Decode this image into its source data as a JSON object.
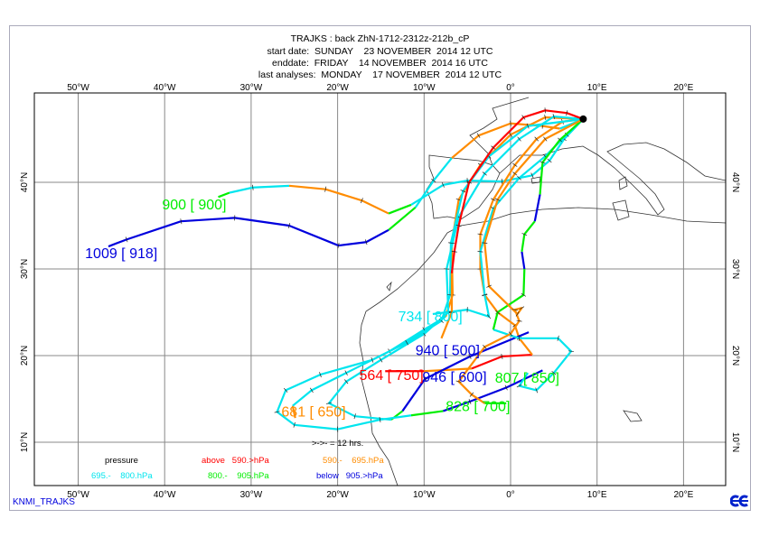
{
  "header": {
    "title": "TRAJKS : back ZhN-1712-2312z-212b_cP",
    "start_date": "start date:  SUNDAY    23 NOVEMBER  2014 12 UTC",
    "end_date": "enddate:  FRIDAY    14 NOVEMBER  2014 16 UTC",
    "last_analyses": "last analyses:  MONDAY    17 NOVEMBER  2014 12 UTC"
  },
  "map": {
    "lon_labels": [
      "50°W",
      "40°W",
      "30°W",
      "20°W",
      "10°W",
      "0°",
      "10°E",
      "20°E"
    ],
    "lat_labels": [
      "10°N",
      "20°N",
      "30°N",
      "40°N"
    ],
    "start_point": [
      8.4,
      47.3
    ]
  },
  "colors": {
    "above_590": "#ff0000",
    "590_695": "#ff8c00",
    "695_800": "#00e5ee",
    "800_905": "#00ee00",
    "below_905": "#0000dd"
  },
  "trajectories": [
    {
      "label": "1009 [ 918]",
      "label_color": "#0000dd",
      "label_at": [
        -49.2,
        31.9
      ],
      "segments": [
        [
          "#0000dd",
          [
            [
              -46.5,
              32.6
            ],
            [
              -44.4,
              33.4
            ],
            [
              -38.1,
              35.5
            ],
            [
              -31.9,
              35.9
            ],
            [
              -25.6,
              35
            ],
            [
              -19.9,
              32.7
            ],
            [
              -16.7,
              33.1
            ],
            [
              -14.1,
              34.5
            ]
          ]
        ],
        [
          "#00ee00",
          [
            [
              -14.1,
              34.5
            ],
            [
              -11,
              37.1
            ]
          ]
        ],
        [
          "#00e5ee",
          [
            [
              -11,
              37.1
            ],
            [
              -8.9,
              40.2
            ],
            [
              -6.8,
              42.8
            ]
          ]
        ],
        [
          "#ff8c00",
          [
            [
              -6.8,
              42.8
            ],
            [
              -3.7,
              45.4
            ],
            [
              0,
              46.8
            ],
            [
              3.7,
              46.5
            ],
            [
              5.7,
              46.2
            ]
          ]
        ],
        [
          "#00e5ee",
          [
            [
              5.7,
              46.2
            ],
            [
              8.4,
              47.3
            ]
          ]
        ]
      ]
    },
    {
      "label": "900 [ 900]",
      "label_color": "#00ee00",
      "label_at": [
        -40.3,
        37.5
      ],
      "segments": [
        [
          "#00ee00",
          [
            [
              -33.8,
              38.3
            ],
            [
              -32.5,
              38.8
            ]
          ]
        ],
        [
          "#00e5ee",
          [
            [
              -32.5,
              38.8
            ],
            [
              -29.8,
              39.4
            ],
            [
              -25.6,
              39.6
            ]
          ]
        ],
        [
          "#ff8c00",
          [
            [
              -25.6,
              39.6
            ],
            [
              -21.4,
              39.2
            ],
            [
              -17.2,
              37.9
            ],
            [
              -14.1,
              36.4
            ]
          ]
        ],
        [
          "#00ee00",
          [
            [
              -14.1,
              36.4
            ],
            [
              -11.5,
              37.4
            ]
          ]
        ],
        [
          "#00e5ee",
          [
            [
              -11.5,
              37.4
            ],
            [
              -7.8,
              39.7
            ],
            [
              -5,
              40.2
            ],
            [
              -1,
              40.1
            ],
            [
              2.5,
              40.8
            ],
            [
              4.5,
              42.5
            ],
            [
              6.2,
              45
            ],
            [
              8.4,
              47.3
            ]
          ]
        ]
      ]
    },
    {
      "label": "564 [ 750]",
      "label_color": "#ff0000",
      "label_at": [
        -17.5,
        17.8
      ],
      "segments": [
        [
          "#ff0000",
          [
            [
              -14.5,
              18.2
            ],
            [
              -10,
              18.2
            ]
          ]
        ],
        [
          "#ff8c00",
          [
            [
              -10,
              18.2
            ],
            [
              -4.5,
              18.5
            ]
          ]
        ],
        [
          "#ff0000",
          [
            [
              -4.5,
              18.5
            ],
            [
              -1,
              19.9
            ],
            [
              2.5,
              20.1
            ]
          ]
        ],
        [
          "#ff8c00",
          [
            [
              2.5,
              20.1
            ],
            [
              1,
              22
            ],
            [
              0.5,
              23.5
            ],
            [
              -1.5,
              25
            ],
            [
              -3,
              27
            ],
            [
              -3.5,
              30
            ],
            [
              -3.5,
              34
            ],
            [
              -2,
              38
            ],
            [
              0.5,
              42
            ],
            [
              3,
              45
            ],
            [
              6,
              47
            ],
            [
              8.4,
              47.3
            ]
          ]
        ]
      ]
    },
    {
      "label": "681 [ 650]",
      "label_color": "#ff8c00",
      "label_at": [
        -26.5,
        13.6
      ],
      "segments": [
        [
          "#ff8c00",
          [
            [
              -24.9,
              12.8
            ],
            [
              -25.2,
              14.2
            ]
          ]
        ],
        [
          "#00e5ee",
          [
            [
              -25.2,
              14.2
            ],
            [
              -23,
              16
            ],
            [
              -19,
              18
            ],
            [
              -14,
              20.5
            ],
            [
              -10,
              23
            ],
            [
              -7.5,
              24.5
            ]
          ]
        ],
        [
          "#ff8c00",
          [
            [
              -7.5,
              24.5
            ],
            [
              -6.7,
              27
            ],
            [
              -6.8,
              33
            ],
            [
              -6,
              38
            ],
            [
              -3.5,
              42
            ],
            [
              0,
              45.5
            ],
            [
              4,
              47.5
            ],
            [
              8.4,
              47.3
            ]
          ]
        ]
      ]
    },
    {
      "label": "734 [ 800]",
      "label_color": "#00e5ee",
      "label_at": [
        -13,
        24.6
      ],
      "segments": [
        [
          "#00e5ee",
          [
            [
              -9,
              24.8
            ],
            [
              -5,
              25.3
            ],
            [
              -2.5,
              24.5
            ],
            [
              -3,
              27
            ],
            [
              -3.5,
              32
            ],
            [
              -2,
              37
            ],
            [
              1,
              40.5
            ],
            [
              4,
              43
            ],
            [
              6.5,
              45.5
            ],
            [
              8.4,
              47.3
            ]
          ]
        ]
      ]
    },
    {
      "label": "940 [ 500]",
      "label_color": "#0000dd",
      "label_at": [
        -11,
        20.7
      ],
      "segments": [
        [
          "#0000dd",
          [
            [
              2.1,
              22.7
            ],
            [
              -4.7,
              19.9
            ],
            [
              -9.9,
              17.3
            ],
            [
              -12.5,
              13.6
            ]
          ]
        ],
        [
          "#00ee00",
          [
            [
              -12.5,
              13.6
            ],
            [
              -13.8,
              12.6
            ]
          ]
        ],
        [
          "#00e5ee",
          [
            [
              -13.8,
              12.6
            ],
            [
              -18,
              13
            ],
            [
              -21,
              14.5
            ],
            [
              -19,
              17
            ],
            [
              -15,
              19.5
            ],
            [
              -10,
              22.5
            ],
            [
              -7.2,
              25
            ],
            [
              -7.4,
              30
            ],
            [
              -6,
              36
            ],
            [
              -3,
              41
            ],
            [
              1,
              45
            ],
            [
              5,
              47.6
            ],
            [
              8.4,
              47.3
            ]
          ]
        ]
      ]
    },
    {
      "label": "946 [ 600]",
      "label_color": "#0000dd",
      "label_at": [
        -10.2,
        17.6
      ],
      "segments": [
        [
          "#0000dd",
          [
            [
              3.7,
              18.3
            ],
            [
              -0.5,
              16.3
            ],
            [
              -4.7,
              14.7
            ],
            [
              -7.8,
              13.6
            ]
          ]
        ],
        [
          "#00ee00",
          [
            [
              -7.8,
              13.6
            ],
            [
              -11.5,
              13.1
            ]
          ]
        ],
        [
          "#00e5ee",
          [
            [
              -11.5,
              13.1
            ],
            [
              -15.1,
              12.6
            ],
            [
              -20,
              11.5
            ],
            [
              -25,
              12
            ],
            [
              -27,
              13.5
            ],
            [
              -26,
              16
            ],
            [
              -22,
              17.8
            ],
            [
              -16,
              19.5
            ],
            [
              -12,
              21.5
            ],
            [
              -8,
              24
            ],
            [
              -7,
              27
            ],
            [
              -6.9,
              33
            ],
            [
              -5.5,
              39
            ],
            [
              -2.5,
              43
            ],
            [
              2,
              46.5
            ],
            [
              8.4,
              47.3
            ]
          ]
        ]
      ]
    },
    {
      "label": "807 [ 850]",
      "label_color": "#00ee00",
      "label_at": [
        -1.8,
        17.5
      ],
      "segments": [
        [
          "#00e5ee",
          [
            [
              2,
              18
            ],
            [
              1,
              16.5
            ],
            [
              3,
              16
            ],
            [
              5,
              18
            ],
            [
              7,
              20.5
            ],
            [
              5.5,
              22
            ],
            [
              1,
              22
            ],
            [
              -2,
              23
            ]
          ]
        ],
        [
          "#00ee00",
          [
            [
              -2,
              23
            ],
            [
              -1.5,
              25
            ],
            [
              1.5,
              27
            ],
            [
              1.6,
              30
            ]
          ]
        ],
        [
          "#0000dd",
          [
            [
              1.6,
              30
            ],
            [
              1.3,
              32
            ]
          ]
        ],
        [
          "#00ee00",
          [
            [
              1.3,
              32
            ],
            [
              1.6,
              34
            ],
            [
              2.8,
              35.5
            ]
          ]
        ],
        [
          "#0000dd",
          [
            [
              2.8,
              35.5
            ],
            [
              3.4,
              38.6
            ]
          ]
        ],
        [
          "#00ee00",
          [
            [
              3.4,
              38.6
            ],
            [
              3.7,
              42.3
            ],
            [
              5.7,
              44.9
            ],
            [
              8.4,
              47.3
            ]
          ]
        ]
      ]
    },
    {
      "label": "828 [ 700]",
      "label_color": "#00ee00",
      "label_at": [
        -7.5,
        14.2
      ],
      "segments": [
        [
          "#00ee00",
          [
            [
              -0.5,
              14.5
            ],
            [
              -3,
              14.5
            ]
          ]
        ],
        [
          "#ff8c00",
          [
            [
              -3,
              14.5
            ],
            [
              -4.5,
              15.5
            ],
            [
              -6,
              17
            ],
            [
              -3,
              21
            ],
            [
              0,
              22.5
            ],
            [
              1,
              24
            ],
            [
              0.5,
              25.3
            ],
            [
              1.3,
              25.5
            ],
            [
              0.8,
              24.8
            ],
            [
              -2.5,
              28
            ],
            [
              -3,
              33
            ],
            [
              -1.5,
              38
            ],
            [
              0.5,
              41
            ],
            [
              4,
              45
            ],
            [
              8.4,
              47.3
            ]
          ]
        ]
      ]
    },
    {
      "label": "",
      "label_color": "#ff0000",
      "label_at": null,
      "segments": [
        [
          "#ff8c00",
          [
            [
              -8,
              22
            ],
            [
              -6.8,
              25
            ],
            [
              -6.8,
              29.5
            ]
          ]
        ],
        [
          "#ff0000",
          [
            [
              -6.8,
              29.5
            ],
            [
              -6.5,
              32
            ],
            [
              -6,
              35
            ],
            [
              -4.8,
              40
            ],
            [
              -2,
              44
            ],
            [
              1.5,
              47.5
            ],
            [
              4,
              48.3
            ],
            [
              6.5,
              48
            ],
            [
              8.4,
              47.3
            ]
          ]
        ]
      ]
    }
  ],
  "legend": {
    "title": "pressure",
    "above": "above   590.>hPa",
    "r590": "590.-    695.hPa",
    "r695": "695.-    800.hPa",
    "r800": "800.-    905.hPa",
    "below": "below   905.>hPa",
    "arrow_note": ">->- = 12 hrs."
  },
  "footer": {
    "source": "KNMI_TRAJKS",
    "logo": "ECMWF"
  }
}
